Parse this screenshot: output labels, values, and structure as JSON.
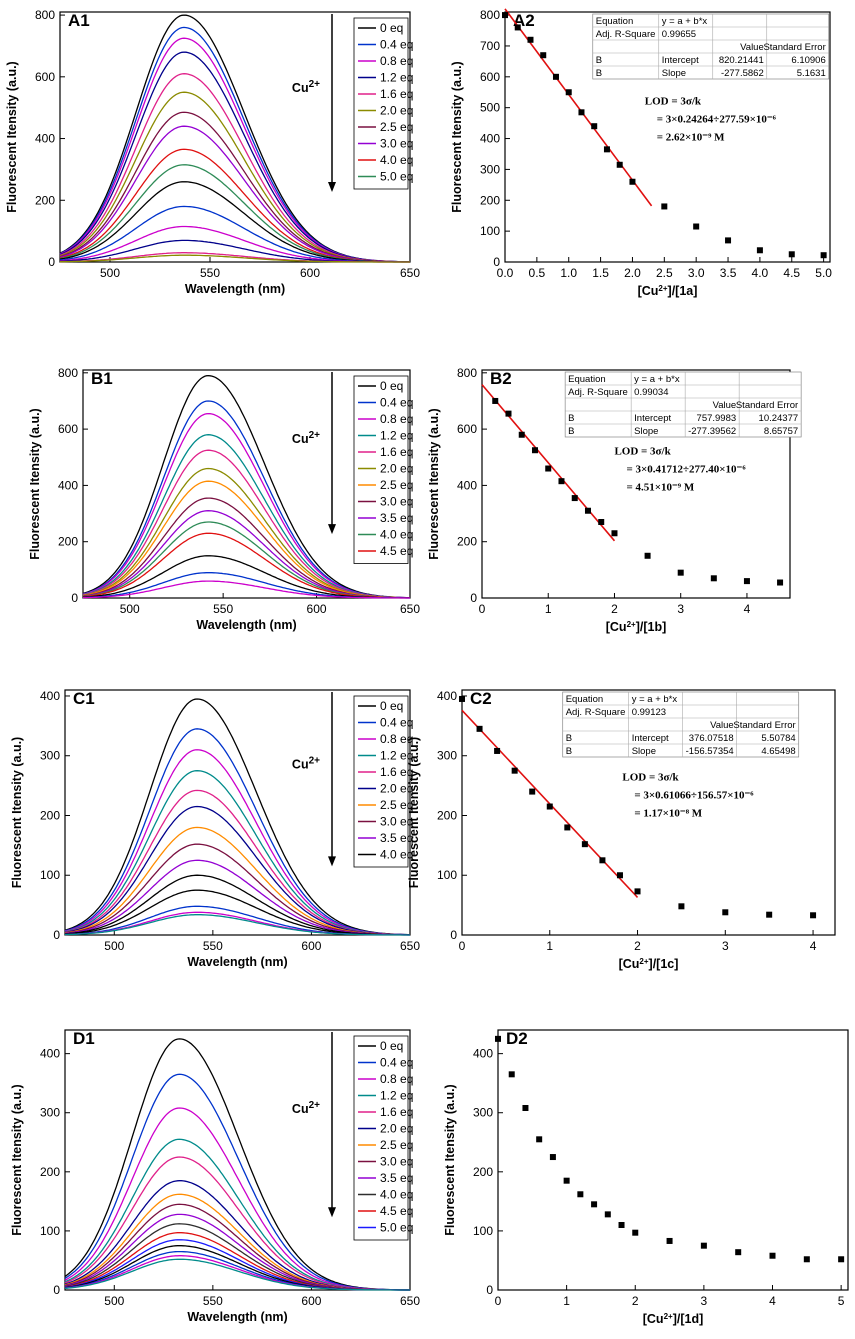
{
  "figure_title": "",
  "chart_data": [
    {
      "panel": "A1",
      "type": "line",
      "xlabel": "Wavelength (nm)",
      "ylabel": "Fluorescent Itensity (a.u.)",
      "xlim": [
        475,
        650
      ],
      "ylim": [
        0,
        810
      ],
      "xticks": [
        500,
        550,
        600,
        650
      ],
      "yticks": [
        0,
        200,
        400,
        600,
        800
      ],
      "peak_wavelength": 537,
      "arrow_label": "Cu2+",
      "legend": [
        "0 eq",
        "0.4 eq",
        "0.8 eq",
        "1.2 eq",
        "1.6 eq",
        "2.0 eq",
        "2.5 eq",
        "3.0 eq",
        "4.0 eq",
        "5.0 eq"
      ],
      "legend_colors": [
        "#000000",
        "#0033cc",
        "#cc00cc",
        "#00008b",
        "#e0218a",
        "#8b8b00",
        "#7a1040",
        "#9400d3",
        "#e01010",
        "#2e8b57"
      ],
      "series_peaks": [
        800,
        760,
        725,
        680,
        610,
        550,
        485,
        440,
        365,
        315,
        260,
        180,
        115,
        70,
        30,
        22
      ]
    },
    {
      "panel": "A2",
      "type": "scatter",
      "xlabel": "[Cu2+]/[1a]",
      "ylabel": "Fluorescent Itensity (a.u.)",
      "xlim": [
        0,
        5.1
      ],
      "ylim": [
        0,
        810
      ],
      "xticks": [
        0.0,
        0.5,
        1.0,
        1.5,
        2.0,
        2.5,
        3.0,
        3.5,
        4.0,
        4.5,
        5.0
      ],
      "xtick_labels": [
        "0.0",
        "0.5",
        "1.0",
        "1.5",
        "2.0",
        "2.5",
        "3.0",
        "3.5",
        "4.0",
        "4.5",
        "5.0"
      ],
      "yticks": [
        0,
        100,
        200,
        300,
        400,
        500,
        600,
        700,
        800
      ],
      "x": [
        0,
        0.2,
        0.4,
        0.6,
        0.8,
        1.0,
        1.2,
        1.4,
        1.6,
        1.8,
        2.0,
        2.5,
        3.0,
        3.5,
        4.0,
        4.5,
        5.0
      ],
      "y": [
        800,
        760,
        720,
        670,
        600,
        550,
        485,
        440,
        365,
        315,
        260,
        180,
        115,
        70,
        38,
        25,
        22
      ],
      "fit": {
        "intercept": 820.21441,
        "slope": -277.5862,
        "x_range": [
          0,
          2.3
        ]
      },
      "table": [
        [
          "Equation",
          "y = a + b*x",
          "",
          ""
        ],
        [
          "Adj. R-Square",
          "0.99655",
          "",
          ""
        ],
        [
          "",
          "",
          "Value",
          "Standard Error"
        ],
        [
          "B",
          "Intercept",
          "820.21441",
          "6.10906"
        ],
        [
          "B",
          "Slope",
          "-277.5862",
          "5.1631"
        ]
      ],
      "lod": [
        "LOD = 3σ/k",
        "= 3×0.24264÷277.59×10⁻⁶",
        "= 2.62×10⁻⁹ M"
      ]
    },
    {
      "panel": "B1",
      "type": "line",
      "xlabel": "Wavelength (nm)",
      "ylabel": "Fluorescent Itensity (a.u.)",
      "xlim": [
        475,
        650
      ],
      "ylim": [
        0,
        810
      ],
      "xticks": [
        500,
        550,
        600,
        650
      ],
      "yticks": [
        0,
        200,
        400,
        600,
        800
      ],
      "peak_wavelength": 542,
      "arrow_label": "Cu2+",
      "legend": [
        "0 eq",
        "0.4 eq",
        "0.8 eq",
        "1.2 eq",
        "1.6 eq",
        "2.0 eq",
        "2.5 eq",
        "3.0 eq",
        "3.5 eq",
        "4.0 eq",
        "4.5 eq"
      ],
      "legend_colors": [
        "#000000",
        "#0033cc",
        "#cc00cc",
        "#008b8b",
        "#e0218a",
        "#8b8b00",
        "#ff8c00",
        "#7a1040",
        "#9400d3",
        "#2e8b57",
        "#e01010"
      ],
      "series_peaks": [
        790,
        700,
        655,
        580,
        525,
        460,
        415,
        355,
        310,
        270,
        230,
        150,
        90,
        60
      ]
    },
    {
      "panel": "B2",
      "type": "scatter",
      "xlabel": "[Cu2+]/[1b]",
      "ylabel": "Fluorescent Itensity (a.u.)",
      "xlim": [
        0,
        4.65
      ],
      "ylim": [
        0,
        810
      ],
      "xticks": [
        0,
        1,
        2,
        3,
        4
      ],
      "xtick_labels": [
        "0",
        "1",
        "2",
        "3",
        "4"
      ],
      "yticks": [
        0,
        200,
        400,
        600,
        800
      ],
      "x": [
        0.2,
        0.4,
        0.6,
        0.8,
        1.0,
        1.2,
        1.4,
        1.6,
        1.8,
        2.0,
        2.5,
        3.0,
        3.5,
        4.0,
        4.5
      ],
      "y": [
        700,
        655,
        580,
        525,
        460,
        415,
        355,
        310,
        270,
        230,
        150,
        90,
        70,
        60,
        55
      ],
      "fit": {
        "intercept": 757.9983,
        "slope": -277.39562,
        "x_range": [
          0,
          2.0
        ]
      },
      "table": [
        [
          "Equation",
          "y = a + b*x",
          "",
          ""
        ],
        [
          "Adj. R-Square",
          "0.99034",
          "",
          ""
        ],
        [
          "",
          "",
          "Value",
          "Standard Error"
        ],
        [
          "B",
          "Intercept",
          "757.9983",
          "10.24377"
        ],
        [
          "B",
          "Slope",
          "-277.39562",
          "8.65757"
        ]
      ],
      "lod": [
        "LOD = 3σ/k",
        "= 3×0.41712÷277.40×10⁻⁶",
        "= 4.51×10⁻⁹ M"
      ]
    },
    {
      "panel": "C1",
      "type": "line",
      "xlabel": "Wavelength (nm)",
      "ylabel": "Fluorescent Itensity (a.u.)",
      "xlim": [
        475,
        650
      ],
      "ylim": [
        0,
        410
      ],
      "xticks": [
        500,
        550,
        600,
        650
      ],
      "yticks": [
        0,
        100,
        200,
        300,
        400
      ],
      "peak_wavelength": 542,
      "arrow_label": "Cu2+",
      "legend": [
        "0 eq",
        "0.4 eq",
        "0.8 eq",
        "1.2 eq",
        "1.6 eq",
        "2.0 eq",
        "2.5 eq",
        "3.0 eq",
        "3.5 eq",
        "4.0 eq"
      ],
      "legend_colors": [
        "#000000",
        "#0033cc",
        "#cc00cc",
        "#008b8b",
        "#e0218a",
        "#00008b",
        "#ff8c00",
        "#7a1040",
        "#9400d3",
        "#000000"
      ],
      "series_peaks": [
        395,
        345,
        310,
        275,
        242,
        215,
        180,
        152,
        125,
        100,
        75,
        48,
        38,
        34
      ]
    },
    {
      "panel": "C2",
      "type": "scatter",
      "xlabel": "[Cu2+]/[1c]",
      "ylabel": "Fluorescent Itensity (a.u.)",
      "xlim": [
        0,
        4.25
      ],
      "ylim": [
        0,
        410
      ],
      "xticks": [
        0,
        1,
        2,
        3,
        4
      ],
      "xtick_labels": [
        "0",
        "1",
        "2",
        "3",
        "4"
      ],
      "yticks": [
        0,
        100,
        200,
        300,
        400
      ],
      "x": [
        0,
        0.2,
        0.4,
        0.6,
        0.8,
        1.0,
        1.2,
        1.4,
        1.6,
        1.8,
        2.0,
        2.5,
        3.0,
        3.5,
        4.0
      ],
      "y": [
        395,
        345,
        308,
        275,
        240,
        215,
        180,
        152,
        125,
        100,
        73,
        48,
        38,
        34,
        33
      ],
      "fit": {
        "intercept": 376.07518,
        "slope": -156.57354,
        "x_range": [
          0,
          2.0
        ]
      },
      "table": [
        [
          "Equation",
          "y = a + b*x",
          "",
          ""
        ],
        [
          "Adj. R-Square",
          "0.99123",
          "",
          ""
        ],
        [
          "",
          "",
          "Value",
          "Standard Error"
        ],
        [
          "B",
          "Intercept",
          "376.07518",
          "5.50784"
        ],
        [
          "B",
          "Slope",
          "-156.57354",
          "4.65498"
        ]
      ],
      "lod": [
        "LOD = 3σ/k",
        "= 3×0.61066÷156.57×10⁻⁶",
        "= 1.17×10⁻⁸ M"
      ]
    },
    {
      "panel": "D1",
      "type": "line",
      "xlabel": "Wavelength (nm)",
      "ylabel": "Fluorescent Itensity (a.u.)",
      "xlim": [
        475,
        650
      ],
      "ylim": [
        0,
        440
      ],
      "xticks": [
        500,
        550,
        600,
        650
      ],
      "yticks": [
        0,
        100,
        200,
        300,
        400
      ],
      "peak_wavelength": 533,
      "arrow_label": "Cu2+",
      "legend": [
        "0 eq",
        "0.4 eq",
        "0.8 eq",
        "1.2 eq",
        "1.6 eq",
        "2.0 eq",
        "2.5 eq",
        "3.0 eq",
        "3.5 eq",
        "4.0 eq",
        "4.5 eq",
        "5.0 eq"
      ],
      "legend_colors": [
        "#000000",
        "#0033cc",
        "#cc00cc",
        "#008b8b",
        "#e0218a",
        "#00008b",
        "#ff8c00",
        "#7a1040",
        "#9400d3",
        "#2e2e2e",
        "#e01010",
        "#1a1aff"
      ],
      "series_peaks": [
        425,
        365,
        308,
        255,
        225,
        185,
        162,
        145,
        128,
        112,
        97,
        85,
        75,
        65,
        58,
        52
      ]
    },
    {
      "panel": "D2",
      "type": "scatter",
      "xlabel": "[Cu2+]/[1d]",
      "ylabel": "Fluorescent Itensity (a.u.)",
      "xlim": [
        0,
        5.1
      ],
      "ylim": [
        0,
        440
      ],
      "xticks": [
        0,
        1,
        2,
        3,
        4,
        5
      ],
      "xtick_labels": [
        "0",
        "1",
        "2",
        "3",
        "4",
        "5"
      ],
      "yticks": [
        0,
        100,
        200,
        300,
        400
      ],
      "x": [
        0,
        0.2,
        0.4,
        0.6,
        0.8,
        1.0,
        1.2,
        1.4,
        1.6,
        1.8,
        2.0,
        2.5,
        3.0,
        3.5,
        4.0,
        4.5,
        5.0
      ],
      "y": [
        425,
        365,
        308,
        255,
        225,
        185,
        162,
        145,
        128,
        110,
        97,
        83,
        75,
        64,
        58,
        52,
        52
      ],
      "fit": null,
      "table": null,
      "lod": null
    }
  ]
}
